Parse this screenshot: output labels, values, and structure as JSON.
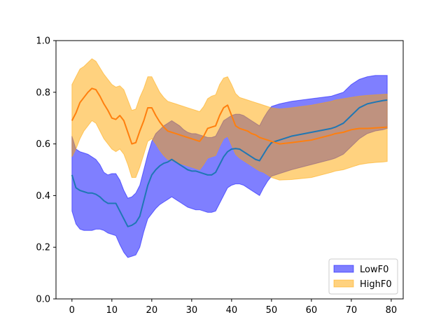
{
  "chart_data": {
    "type": "area",
    "title": "",
    "xlabel": "",
    "ylabel": "",
    "xlim": [
      -4,
      83
    ],
    "ylim": [
      0.0,
      1.0
    ],
    "grid": false,
    "legend_position": "lower-right",
    "xticks": [
      0,
      10,
      20,
      30,
      40,
      50,
      60,
      70,
      80
    ],
    "xtick_labels": [
      "0",
      "10",
      "20",
      "30",
      "40",
      "50",
      "60",
      "70",
      "80"
    ],
    "yticks": [
      0.0,
      0.2,
      0.4,
      0.6,
      0.8,
      1.0
    ],
    "ytick_labels": [
      "0.0",
      "0.2",
      "0.4",
      "0.6",
      "0.8",
      "1.0"
    ],
    "series": [
      {
        "name": "LowF0",
        "line_color": "#1f77b4",
        "fill_color": "#0000ff",
        "fill_opacity": 0.5,
        "x": [
          0,
          1,
          2,
          3,
          4,
          5,
          6,
          7,
          8,
          9,
          10,
          11,
          12,
          13,
          14,
          15,
          16,
          17,
          18,
          19,
          20,
          21,
          22,
          23,
          24,
          25,
          26,
          27,
          28,
          29,
          30,
          31,
          32,
          33,
          34,
          35,
          36,
          37,
          38,
          39,
          40,
          41,
          42,
          43,
          44,
          45,
          46,
          47,
          48,
          49,
          50,
          52,
          55,
          60,
          65,
          66,
          68,
          70,
          72,
          74,
          76,
          78,
          79
        ],
        "mean": [
          0.48,
          0.43,
          0.42,
          0.415,
          0.41,
          0.41,
          0.405,
          0.395,
          0.38,
          0.37,
          0.37,
          0.37,
          0.34,
          0.31,
          0.28,
          0.285,
          0.295,
          0.32,
          0.38,
          0.44,
          0.48,
          0.5,
          0.515,
          0.525,
          0.53,
          0.54,
          0.53,
          0.52,
          0.51,
          0.5,
          0.495,
          0.495,
          0.49,
          0.485,
          0.48,
          0.48,
          0.49,
          0.52,
          0.55,
          0.57,
          0.58,
          0.582,
          0.58,
          0.57,
          0.56,
          0.55,
          0.54,
          0.535,
          0.56,
          0.585,
          0.605,
          0.615,
          0.63,
          0.645,
          0.66,
          0.665,
          0.68,
          0.71,
          0.74,
          0.755,
          0.762,
          0.768,
          0.77
        ],
        "lower": [
          0.34,
          0.29,
          0.27,
          0.265,
          0.265,
          0.265,
          0.27,
          0.27,
          0.265,
          0.255,
          0.25,
          0.245,
          0.21,
          0.18,
          0.16,
          0.165,
          0.17,
          0.2,
          0.26,
          0.31,
          0.33,
          0.35,
          0.365,
          0.375,
          0.385,
          0.395,
          0.385,
          0.375,
          0.365,
          0.355,
          0.35,
          0.345,
          0.345,
          0.34,
          0.335,
          0.335,
          0.34,
          0.37,
          0.4,
          0.43,
          0.44,
          0.445,
          0.445,
          0.44,
          0.43,
          0.42,
          0.41,
          0.4,
          0.43,
          0.455,
          0.475,
          0.485,
          0.5,
          0.52,
          0.54,
          0.545,
          0.56,
          0.59,
          0.62,
          0.64,
          0.65,
          0.655,
          0.66
        ],
        "upper": [
          0.63,
          0.58,
          0.57,
          0.565,
          0.56,
          0.55,
          0.54,
          0.52,
          0.49,
          0.48,
          0.485,
          0.485,
          0.46,
          0.42,
          0.39,
          0.395,
          0.41,
          0.44,
          0.5,
          0.56,
          0.61,
          0.64,
          0.655,
          0.67,
          0.68,
          0.69,
          0.68,
          0.67,
          0.655,
          0.645,
          0.64,
          0.64,
          0.635,
          0.63,
          0.625,
          0.625,
          0.63,
          0.66,
          0.69,
          0.7,
          0.71,
          0.715,
          0.715,
          0.71,
          0.7,
          0.69,
          0.68,
          0.67,
          0.7,
          0.725,
          0.745,
          0.755,
          0.765,
          0.775,
          0.785,
          0.79,
          0.8,
          0.83,
          0.85,
          0.86,
          0.865,
          0.865,
          0.865
        ]
      },
      {
        "name": "HighF0",
        "line_color": "#ff7f0e",
        "fill_color": "#ffa500",
        "fill_opacity": 0.5,
        "x": [
          0,
          1,
          2,
          3,
          4,
          5,
          6,
          7,
          8,
          9,
          10,
          11,
          12,
          13,
          14,
          15,
          16,
          17,
          18,
          19,
          20,
          21,
          22,
          23,
          24,
          25,
          26,
          27,
          28,
          29,
          30,
          31,
          32,
          33,
          34,
          35,
          36,
          37,
          38,
          39,
          40,
          41,
          42,
          43,
          44,
          45,
          46,
          47,
          48,
          49,
          50,
          52,
          55,
          60,
          65,
          66,
          68,
          70,
          72,
          74,
          76,
          78,
          79
        ],
        "mean": [
          0.69,
          0.72,
          0.76,
          0.78,
          0.8,
          0.815,
          0.81,
          0.785,
          0.755,
          0.73,
          0.7,
          0.695,
          0.71,
          0.69,
          0.645,
          0.6,
          0.605,
          0.65,
          0.69,
          0.74,
          0.74,
          0.71,
          0.685,
          0.665,
          0.65,
          0.645,
          0.64,
          0.635,
          0.63,
          0.625,
          0.62,
          0.615,
          0.61,
          0.63,
          0.66,
          0.665,
          0.67,
          0.71,
          0.74,
          0.75,
          0.71,
          0.67,
          0.66,
          0.655,
          0.65,
          0.64,
          0.635,
          0.625,
          0.62,
          0.615,
          0.61,
          0.6,
          0.605,
          0.615,
          0.635,
          0.64,
          0.645,
          0.655,
          0.66,
          0.66,
          0.662,
          0.664,
          0.665
        ],
        "lower": [
          0.55,
          0.58,
          0.62,
          0.65,
          0.67,
          0.69,
          0.68,
          0.65,
          0.62,
          0.6,
          0.58,
          0.57,
          0.58,
          0.56,
          0.52,
          0.47,
          0.47,
          0.51,
          0.56,
          0.61,
          0.62,
          0.6,
          0.575,
          0.555,
          0.54,
          0.535,
          0.53,
          0.525,
          0.52,
          0.515,
          0.51,
          0.505,
          0.5,
          0.52,
          0.545,
          0.55,
          0.555,
          0.59,
          0.62,
          0.63,
          0.595,
          0.56,
          0.545,
          0.535,
          0.525,
          0.515,
          0.505,
          0.495,
          0.49,
          0.48,
          0.47,
          0.46,
          0.462,
          0.47,
          0.49,
          0.495,
          0.5,
          0.51,
          0.52,
          0.525,
          0.528,
          0.53,
          0.532
        ],
        "upper": [
          0.83,
          0.86,
          0.89,
          0.9,
          0.915,
          0.93,
          0.92,
          0.895,
          0.87,
          0.85,
          0.83,
          0.82,
          0.825,
          0.81,
          0.77,
          0.73,
          0.735,
          0.78,
          0.815,
          0.86,
          0.86,
          0.83,
          0.8,
          0.78,
          0.765,
          0.76,
          0.755,
          0.75,
          0.745,
          0.74,
          0.735,
          0.73,
          0.725,
          0.745,
          0.775,
          0.785,
          0.79,
          0.83,
          0.855,
          0.86,
          0.83,
          0.795,
          0.78,
          0.775,
          0.77,
          0.765,
          0.76,
          0.755,
          0.75,
          0.745,
          0.74,
          0.735,
          0.74,
          0.75,
          0.765,
          0.77,
          0.775,
          0.78,
          0.785,
          0.788,
          0.79,
          0.792,
          0.793
        ]
      }
    ]
  }
}
